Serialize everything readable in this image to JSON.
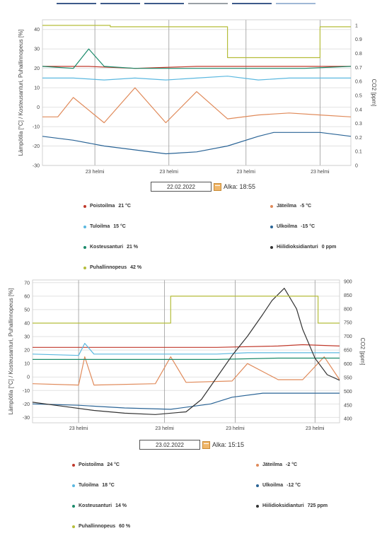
{
  "chart_data": [
    {
      "type": "line",
      "ylabel": "Lämpötila [°C] / Kosteusanturi, Puhallinnopeus [%]",
      "y2label": "CO2 [ppm]",
      "ylim": [
        -30,
        45
      ],
      "yticks": [
        -30,
        -20,
        -10,
        0,
        10,
        20,
        30,
        40
      ],
      "y2lim": [
        0,
        1.04
      ],
      "y2ticks": [
        0,
        0.1,
        0.2,
        0.3,
        0.4,
        0.5,
        0.6,
        0.7,
        0.8,
        0.9,
        1
      ],
      "xticks": [
        "23 helmi",
        "23 helmi",
        "23 helmi",
        "23 helmi"
      ],
      "series": [
        {
          "name": "Poistoilma",
          "key": "poisto",
          "color": "#c0392b",
          "axis": "left",
          "x": [
            0,
            0.15,
            0.3,
            0.5,
            0.7,
            0.85,
            1
          ],
          "y": [
            21,
            21,
            20,
            21,
            21,
            21,
            21
          ]
        },
        {
          "name": "Tuloilma",
          "key": "tulo",
          "color": "#5bb8e0",
          "axis": "left",
          "x": [
            0,
            0.1,
            0.2,
            0.3,
            0.4,
            0.5,
            0.6,
            0.7,
            0.8,
            0.9,
            1
          ],
          "y": [
            15,
            15,
            14,
            15,
            14,
            15,
            16,
            14,
            15,
            15,
            15
          ]
        },
        {
          "name": "Ulkoilma",
          "key": "ulko",
          "color": "#2a6496",
          "axis": "left",
          "x": [
            0,
            0.1,
            0.2,
            0.3,
            0.4,
            0.5,
            0.6,
            0.7,
            0.75,
            0.8,
            0.9,
            1
          ],
          "y": [
            -15,
            -17,
            -20,
            -22,
            -24,
            -23,
            -20,
            -15,
            -13,
            -13,
            -13,
            -15
          ]
        },
        {
          "name": "Jäteilma",
          "key": "jate",
          "color": "#e08a5a",
          "axis": "left",
          "x": [
            0,
            0.05,
            0.1,
            0.2,
            0.3,
            0.4,
            0.5,
            0.6,
            0.7,
            0.8,
            0.9,
            1
          ],
          "y": [
            -5,
            -5,
            5,
            -8,
            10,
            -8,
            8,
            -6,
            -4,
            -3,
            -4,
            -5
          ]
        },
        {
          "name": "Kosteusanturi",
          "key": "kost",
          "color": "#1a8a6a",
          "axis": "left",
          "x": [
            0,
            0.1,
            0.15,
            0.2,
            0.3,
            0.5,
            0.7,
            0.85,
            1
          ],
          "y": [
            21,
            20,
            30,
            21,
            20,
            20,
            20,
            20,
            21
          ]
        },
        {
          "name": "Hiilidioksidianturi",
          "key": "co2",
          "color": "#333333",
          "axis": "right",
          "x": [],
          "y": []
        },
        {
          "name": "Puhallinnopeus",
          "key": "puhal",
          "color": "#b5bd3a",
          "axis": "right",
          "step": true,
          "x": [
            0,
            0.22,
            0.22,
            0.6,
            0.6,
            0.9,
            0.9,
            1
          ],
          "y": [
            1.0,
            1.0,
            0.99,
            0.99,
            0.77,
            0.77,
            0.99,
            0.99
          ]
        }
      ]
    },
    {
      "type": "line",
      "ylabel": "Lämpötila [°C] / Kosteusanturi, Puhallinnopeus [%]",
      "y2label": "CO2 [ppm]",
      "ylim": [
        -34,
        72
      ],
      "yticks": [
        -30,
        -20,
        -10,
        0,
        10,
        20,
        30,
        40,
        50,
        60,
        70
      ],
      "y2lim": [
        385,
        905
      ],
      "y2ticks": [
        400,
        450,
        500,
        550,
        600,
        650,
        700,
        750,
        800,
        850,
        900
      ],
      "xticks": [
        "23 helmi",
        "23 helmi",
        "23 helmi",
        "23 helmi"
      ],
      "series": [
        {
          "name": "Poistoilma",
          "key": "poisto",
          "color": "#c0392b",
          "axis": "left",
          "x": [
            0,
            0.2,
            0.4,
            0.6,
            0.8,
            0.88,
            1
          ],
          "y": [
            22,
            22,
            22,
            22,
            23,
            24,
            23
          ]
        },
        {
          "name": "Tuloilma",
          "key": "tulo",
          "color": "#5bb8e0",
          "axis": "left",
          "x": [
            0,
            0.15,
            0.17,
            0.2,
            0.4,
            0.6,
            0.7,
            0.8,
            0.88,
            1
          ],
          "y": [
            17,
            16,
            25,
            17,
            17,
            17,
            18,
            18,
            18,
            18
          ]
        },
        {
          "name": "Ulkoilma",
          "key": "ulko",
          "color": "#2a6496",
          "axis": "left",
          "x": [
            0,
            0.15,
            0.3,
            0.45,
            0.58,
            0.65,
            0.75,
            0.85,
            0.88,
            1
          ],
          "y": [
            -20,
            -21,
            -23,
            -24,
            -20,
            -15,
            -12,
            -12,
            -12,
            -12
          ]
        },
        {
          "name": "Jäteilma",
          "key": "jate",
          "color": "#e08a5a",
          "axis": "left",
          "x": [
            0,
            0.15,
            0.17,
            0.2,
            0.4,
            0.45,
            0.5,
            0.65,
            0.7,
            0.8,
            0.88,
            0.95,
            1
          ],
          "y": [
            -5,
            -6,
            15,
            -6,
            -5,
            15,
            -4,
            -3,
            10,
            -2,
            -2,
            15,
            -2
          ]
        },
        {
          "name": "Kosteusanturi",
          "key": "kost",
          "color": "#1a8a6a",
          "axis": "left",
          "x": [
            0,
            0.2,
            0.4,
            0.6,
            0.8,
            0.88,
            1
          ],
          "y": [
            13,
            13,
            13,
            13,
            14,
            14,
            14
          ]
        },
        {
          "name": "Hiilidioksidianturi",
          "key": "co2",
          "color": "#333333",
          "axis": "right",
          "x": [
            0,
            0.1,
            0.2,
            0.3,
            0.4,
            0.5,
            0.55,
            0.6,
            0.65,
            0.7,
            0.75,
            0.78,
            0.82,
            0.86,
            0.88,
            0.92,
            0.96,
            1
          ],
          "y": [
            460,
            445,
            430,
            420,
            415,
            425,
            470,
            550,
            630,
            700,
            780,
            830,
            875,
            800,
            725,
            620,
            560,
            540
          ]
        },
        {
          "name": "Puhallinnopeus",
          "key": "puhal",
          "color": "#b5bd3a",
          "axis": "left",
          "step": true,
          "x": [
            0,
            0.45,
            0.45,
            0.93,
            0.93,
            1
          ],
          "y": [
            40,
            40,
            60,
            60,
            40,
            40
          ]
        }
      ]
    }
  ],
  "panels": [
    {
      "date": "22.02.2022",
      "start_label": "Alka: 18:55",
      "legend": [
        {
          "label": "Poistoilma",
          "value": "21 °C",
          "color": "#c0392b"
        },
        {
          "label": "Jäteilma",
          "value": "-5 °C",
          "color": "#e08a5a"
        },
        {
          "label": "Tuloilma",
          "value": "15 °C",
          "color": "#5bb8e0"
        },
        {
          "label": "Ulkoilma",
          "value": "-15 °C",
          "color": "#2a6496"
        },
        {
          "label": "Kosteusanturi",
          "value": "21 %",
          "color": "#1a8a6a"
        },
        {
          "label": "Hiilidioksidianturi",
          "value": "0 ppm",
          "color": "#333333"
        },
        {
          "label": "Puhallinnopeus",
          "value": "42 %",
          "color": "#b5bd3a"
        }
      ]
    },
    {
      "date": "23.02.2022",
      "start_label": "Alka: 15:15",
      "legend": [
        {
          "label": "Poistoilma",
          "value": "24 °C",
          "color": "#c0392b"
        },
        {
          "label": "Jäteilma",
          "value": "-2 °C",
          "color": "#e08a5a"
        },
        {
          "label": "Tuloilma",
          "value": "18 °C",
          "color": "#5bb8e0"
        },
        {
          "label": "Ulkoilma",
          "value": "-12 °C",
          "color": "#2a6496"
        },
        {
          "label": "Kosteusanturi",
          "value": "14 %",
          "color": "#1a8a6a"
        },
        {
          "label": "Hiilidioksidianturi",
          "value": "725 ppm",
          "color": "#333333"
        },
        {
          "label": "Puhallinnopeus",
          "value": "60 %",
          "color": "#b5bd3a"
        }
      ]
    }
  ]
}
